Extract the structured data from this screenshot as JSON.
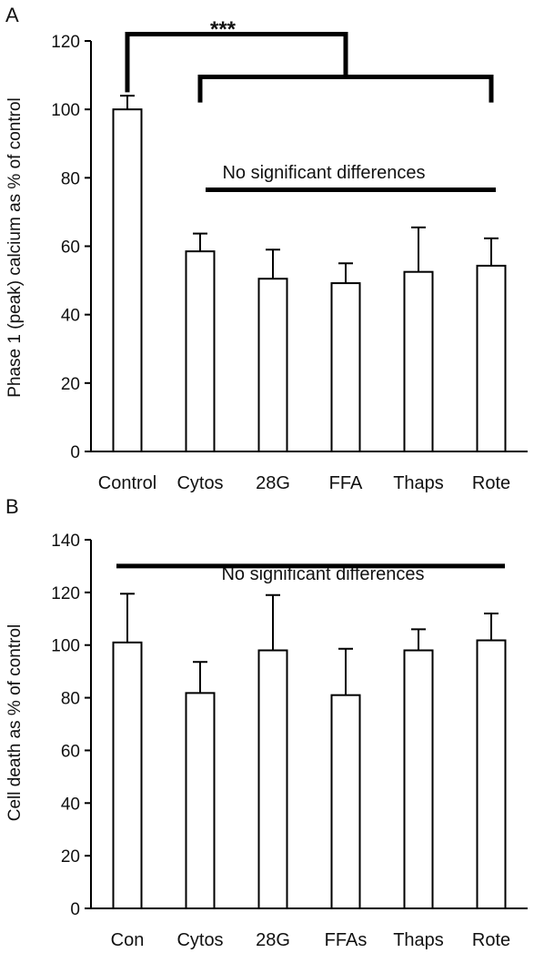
{
  "chart_data": [
    {
      "panel": "A",
      "type": "bar",
      "ylabel": "Phase 1 (peak)  calcium as % of control",
      "ylim": [
        0,
        120
      ],
      "yticks": [
        0,
        20,
        40,
        60,
        80,
        100,
        120
      ],
      "categories": [
        "Control",
        "Cytos",
        "28G",
        "FFA",
        "Thaps",
        "Rote"
      ],
      "values": [
        100,
        58.5,
        50.5,
        49.2,
        52.5,
        54.3
      ],
      "errors": [
        4,
        5.2,
        8.5,
        5.8,
        13,
        8
      ],
      "grid": false,
      "annotations": {
        "significance": "***",
        "no_difference": "No significant differences"
      }
    },
    {
      "panel": "B",
      "type": "bar",
      "ylabel": "Cell death as % of control",
      "ylim": [
        0,
        140
      ],
      "yticks": [
        0,
        20,
        40,
        60,
        80,
        100,
        120,
        140
      ],
      "categories": [
        "Con",
        "Cytos",
        "28G",
        "FFAs",
        "Thaps",
        "Rote"
      ],
      "values": [
        101,
        81.8,
        98,
        81,
        98,
        101.8
      ],
      "errors": [
        18.5,
        11.8,
        21,
        17.6,
        8,
        10.2
      ],
      "grid": false,
      "annotations": {
        "no_difference": "No significant differences"
      }
    }
  ]
}
